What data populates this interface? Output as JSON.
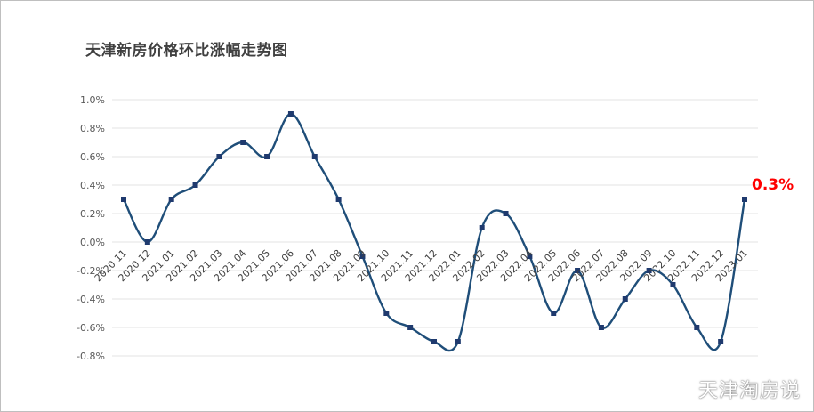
{
  "chart_data": {
    "type": "line",
    "title": "天津新房价格环比涨幅走势图",
    "xlabel": "",
    "ylabel": "",
    "categories": [
      "2020.11",
      "2020.12",
      "2021.01",
      "2021.02",
      "2021.03",
      "2021.04",
      "2021.05",
      "2021.06",
      "2021.07",
      "2021.08",
      "2021.09",
      "2021.10",
      "2021.11",
      "2021.12",
      "2022.01",
      "2022.02",
      "2022.03",
      "2022.04",
      "2022.05",
      "2022.06",
      "2022.07",
      "2022.08",
      "2022.09",
      "2022.10",
      "2022.11",
      "2022.12",
      "2023.01"
    ],
    "series": [
      {
        "name": "",
        "values": [
          0.3,
          0.0,
          0.3,
          0.4,
          0.6,
          0.7,
          0.6,
          0.9,
          0.6,
          0.3,
          -0.1,
          -0.5,
          -0.6,
          -0.7,
          -0.7,
          0.1,
          0.2,
          -0.1,
          -0.5,
          -0.2,
          -0.6,
          -0.4,
          -0.2,
          -0.3,
          -0.6,
          -0.7,
          0.3
        ]
      }
    ],
    "ylim": [
      -0.8,
      1.0
    ],
    "yticks": [
      "-0.8%",
      "-0.6%",
      "-0.4%",
      "-0.2%",
      "0.0%",
      "0.2%",
      "0.4%",
      "0.6%",
      "0.8%",
      "1.0%"
    ],
    "grid": true,
    "legend": "none",
    "annotation": "0.3%",
    "line_color": "#1f4e79",
    "marker_color": "#1f3a6e",
    "annotation_color": "#ff0000"
  },
  "watermark": "天津淘房说"
}
